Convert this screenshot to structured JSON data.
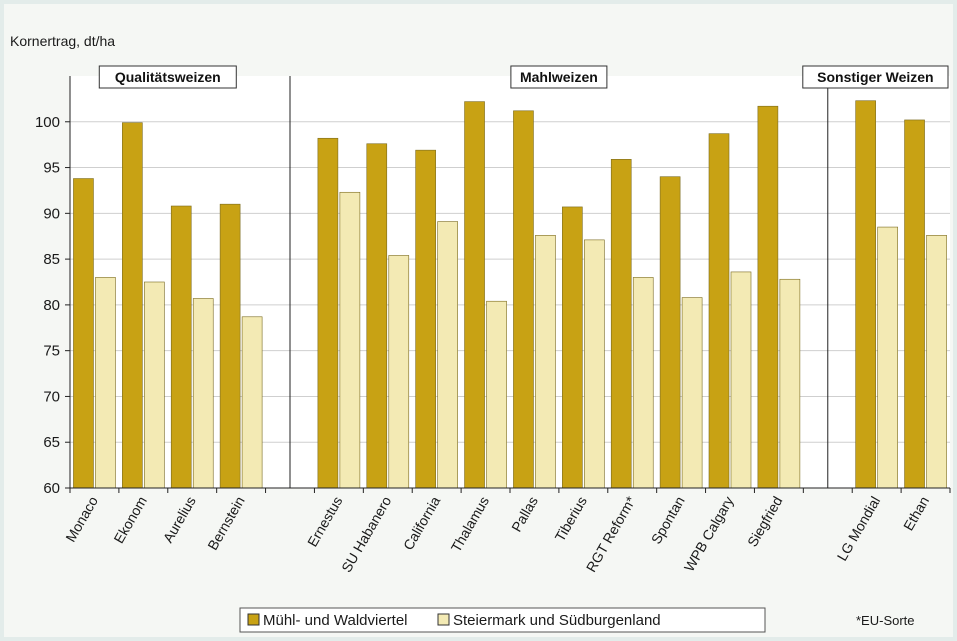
{
  "chart_data": {
    "type": "bar",
    "ylabel": "Kornertrag, dt/ha",
    "ylim": [
      60,
      105
    ],
    "yticks": [
      60,
      65,
      70,
      75,
      80,
      85,
      90,
      95,
      100
    ],
    "grid": true,
    "legend_position": "bottom",
    "categories": [
      "Monaco",
      "Ekonom",
      "Aurelius",
      "Bernstein",
      "",
      "Ernestus",
      "SU Habanero",
      "California",
      "Thalamus",
      "Pallas",
      "Tiberius",
      "RGT Reform*",
      "Spontan",
      "WPB Calgary",
      "Siegfried",
      "",
      "LG Mondial",
      "Ethan"
    ],
    "series": [
      {
        "name": "Mühl- und Waldviertel",
        "color": "#c8a214",
        "values": [
          93.8,
          99.9,
          90.8,
          91.0,
          null,
          98.2,
          97.6,
          96.9,
          102.2,
          101.2,
          90.7,
          95.9,
          94.0,
          98.7,
          101.7,
          null,
          102.3,
          100.2
        ]
      },
      {
        "name": "Steiermark und Südburgenland",
        "color": "#f3eab4",
        "values": [
          83.0,
          82.5,
          80.7,
          78.7,
          null,
          92.3,
          85.4,
          89.1,
          80.4,
          87.6,
          87.1,
          83.0,
          80.8,
          83.6,
          82.8,
          null,
          88.5,
          87.6
        ]
      }
    ],
    "groups": [
      {
        "label": "Qualitätsweizen"
      },
      {
        "label": "Mahlweizen"
      },
      {
        "label": "Sonstiger Weizen"
      }
    ],
    "footnote": "*EU-Sorte"
  }
}
